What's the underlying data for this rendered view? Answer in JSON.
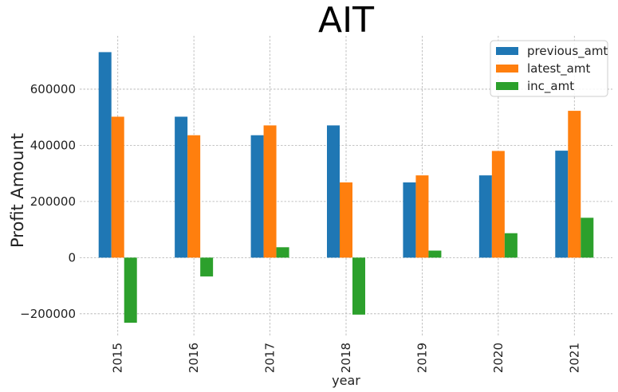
{
  "chart_data": {
    "type": "bar",
    "title": "AIT",
    "xlabel": "year",
    "ylabel": "Profit Amount",
    "categories": [
      "2015",
      "2016",
      "2017",
      "2018",
      "2019",
      "2020",
      "2021"
    ],
    "series": [
      {
        "name": "previous_amt",
        "color": "#1f77b4",
        "values": [
          732000,
          502000,
          436000,
          471000,
          268000,
          293000,
          381000
        ]
      },
      {
        "name": "latest_amt",
        "color": "#ff7f0e",
        "values": [
          502000,
          436000,
          471000,
          268000,
          293000,
          380000,
          523000
        ]
      },
      {
        "name": "inc_amt",
        "color": "#2ca02c",
        "values": [
          -232000,
          -67000,
          37000,
          -203000,
          25000,
          87000,
          142000
        ]
      }
    ],
    "ylim": [
      -280000,
      790000
    ],
    "yticks": [
      -200000,
      0,
      200000,
      400000,
      600000
    ],
    "ytick_labels": [
      "−200000",
      "0",
      "200000",
      "400000",
      "600000"
    ],
    "grid": true,
    "legend_position": "top-right"
  }
}
